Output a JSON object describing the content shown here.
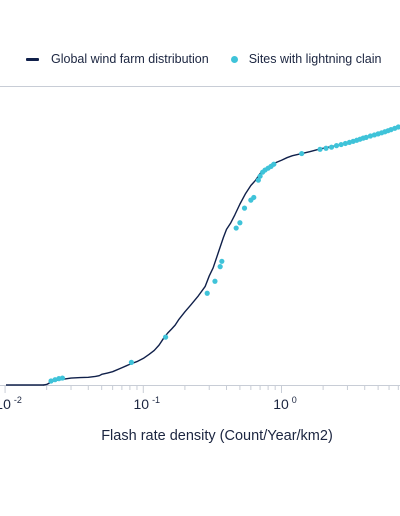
{
  "chart_data": {
    "type": "line",
    "title": "",
    "xlabel": "Flash rate density (Count/Year/km2)",
    "ylabel": "",
    "x_scale": "log",
    "xlim": [
      0.0095,
      7.2
    ],
    "ylim": [
      0,
      1
    ],
    "grid": false,
    "legend_position": "top-left",
    "colors": {
      "line": "#10204a",
      "points": "#3fc3d9",
      "axis": "#c8cdd6",
      "text": "#1b2540"
    },
    "x_ticks": [
      {
        "value": 0.01,
        "base": "10",
        "exp": "-2"
      },
      {
        "value": 0.1,
        "base": "10",
        "exp": "-1"
      },
      {
        "value": 1,
        "base": "10",
        "exp": "0"
      }
    ],
    "series": [
      {
        "name": "Global wind farm distribution",
        "kind": "line",
        "x": [
          0.019,
          0.02,
          0.021,
          0.022,
          0.025,
          0.03,
          0.035,
          0.04,
          0.045,
          0.048,
          0.05,
          0.055,
          0.06,
          0.07,
          0.08,
          0.09,
          0.1,
          0.11,
          0.12,
          0.13,
          0.14,
          0.15,
          0.16,
          0.17,
          0.18,
          0.2,
          0.22,
          0.25,
          0.28,
          0.3,
          0.32,
          0.35,
          0.38,
          0.4,
          0.43,
          0.46,
          0.5,
          0.55,
          0.6,
          0.65,
          0.7,
          0.75,
          0.8,
          0.85,
          0.9,
          1.0,
          1.1,
          1.2,
          1.4,
          1.6,
          1.8,
          2.0,
          2.5,
          3.0,
          3.5,
          4.0,
          5.0,
          6.0,
          7.0
        ],
        "y": [
          0.0,
          0.002,
          0.008,
          0.014,
          0.02,
          0.026,
          0.028,
          0.029,
          0.032,
          0.035,
          0.04,
          0.045,
          0.05,
          0.065,
          0.078,
          0.088,
          0.1,
          0.115,
          0.13,
          0.15,
          0.175,
          0.195,
          0.21,
          0.225,
          0.245,
          0.275,
          0.3,
          0.335,
          0.37,
          0.41,
          0.44,
          0.5,
          0.555,
          0.585,
          0.61,
          0.64,
          0.68,
          0.72,
          0.75,
          0.77,
          0.795,
          0.81,
          0.82,
          0.83,
          0.835,
          0.845,
          0.855,
          0.862,
          0.87,
          0.877,
          0.884,
          0.89,
          0.9,
          0.91,
          0.92,
          0.93,
          0.945,
          0.958,
          0.97
        ]
      },
      {
        "name": "Sites with lightning clain",
        "kind": "scatter",
        "x": [
          0.0215,
          0.023,
          0.0245,
          0.026,
          0.082,
          0.145,
          0.29,
          0.33,
          0.36,
          0.37,
          0.47,
          0.5,
          0.54,
          0.6,
          0.63,
          0.68,
          0.7,
          0.73,
          0.76,
          0.8,
          0.84,
          0.88,
          1.4,
          1.9,
          2.1,
          2.3,
          2.5,
          2.7,
          2.9,
          3.1,
          3.3,
          3.5,
          3.7,
          3.9,
          4.1,
          4.4,
          4.7,
          5.0,
          5.3,
          5.6,
          5.9,
          6.2,
          6.6,
          7.0
        ],
        "y": [
          0.015,
          0.02,
          0.024,
          0.026,
          0.085,
          0.18,
          0.345,
          0.39,
          0.445,
          0.465,
          0.59,
          0.61,
          0.665,
          0.695,
          0.705,
          0.77,
          0.785,
          0.8,
          0.808,
          0.815,
          0.822,
          0.83,
          0.87,
          0.886,
          0.89,
          0.894,
          0.9,
          0.904,
          0.908,
          0.912,
          0.916,
          0.92,
          0.924,
          0.928,
          0.931,
          0.936,
          0.94,
          0.944,
          0.948,
          0.952,
          0.956,
          0.96,
          0.965,
          0.97
        ]
      }
    ]
  }
}
